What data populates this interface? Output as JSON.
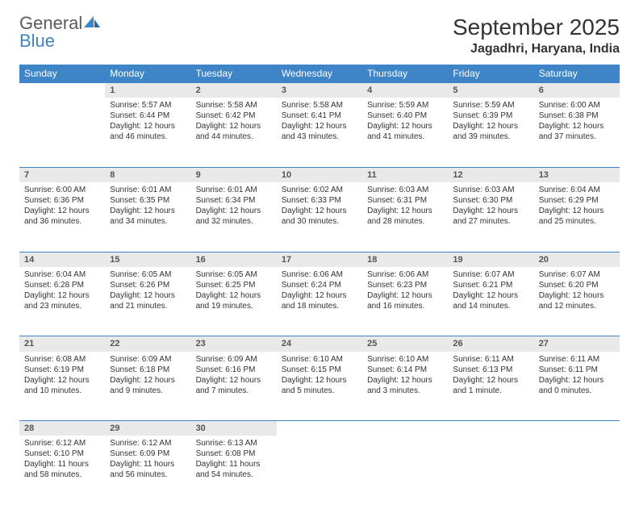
{
  "logo": {
    "word1": "General",
    "word2": "Blue"
  },
  "title": "September 2025",
  "location": "Jagadhri, Haryana, India",
  "colors": {
    "header_bg": "#3d85c6",
    "header_fg": "#ffffff",
    "daynum_bg": "#e9e9e9",
    "row_border": "#3d85c6",
    "text": "#333333",
    "logo_gray": "#5a5a5a",
    "logo_blue": "#3d85c6",
    "background": "#ffffff"
  },
  "typography": {
    "title_pt": 28,
    "location_pt": 16,
    "header_pt": 12,
    "daynum_pt": 11,
    "body_pt": 10
  },
  "day_headers": [
    "Sunday",
    "Monday",
    "Tuesday",
    "Wednesday",
    "Thursday",
    "Friday",
    "Saturday"
  ],
  "weeks": [
    {
      "nums": [
        "",
        "1",
        "2",
        "3",
        "4",
        "5",
        "6"
      ],
      "cells": [
        null,
        {
          "sunrise": "Sunrise: 5:57 AM",
          "sunset": "Sunset: 6:44 PM",
          "daylight": "Daylight: 12 hours and 46 minutes."
        },
        {
          "sunrise": "Sunrise: 5:58 AM",
          "sunset": "Sunset: 6:42 PM",
          "daylight": "Daylight: 12 hours and 44 minutes."
        },
        {
          "sunrise": "Sunrise: 5:58 AM",
          "sunset": "Sunset: 6:41 PM",
          "daylight": "Daylight: 12 hours and 43 minutes."
        },
        {
          "sunrise": "Sunrise: 5:59 AM",
          "sunset": "Sunset: 6:40 PM",
          "daylight": "Daylight: 12 hours and 41 minutes."
        },
        {
          "sunrise": "Sunrise: 5:59 AM",
          "sunset": "Sunset: 6:39 PM",
          "daylight": "Daylight: 12 hours and 39 minutes."
        },
        {
          "sunrise": "Sunrise: 6:00 AM",
          "sunset": "Sunset: 6:38 PM",
          "daylight": "Daylight: 12 hours and 37 minutes."
        }
      ]
    },
    {
      "nums": [
        "7",
        "8",
        "9",
        "10",
        "11",
        "12",
        "13"
      ],
      "cells": [
        {
          "sunrise": "Sunrise: 6:00 AM",
          "sunset": "Sunset: 6:36 PM",
          "daylight": "Daylight: 12 hours and 36 minutes."
        },
        {
          "sunrise": "Sunrise: 6:01 AM",
          "sunset": "Sunset: 6:35 PM",
          "daylight": "Daylight: 12 hours and 34 minutes."
        },
        {
          "sunrise": "Sunrise: 6:01 AM",
          "sunset": "Sunset: 6:34 PM",
          "daylight": "Daylight: 12 hours and 32 minutes."
        },
        {
          "sunrise": "Sunrise: 6:02 AM",
          "sunset": "Sunset: 6:33 PM",
          "daylight": "Daylight: 12 hours and 30 minutes."
        },
        {
          "sunrise": "Sunrise: 6:03 AM",
          "sunset": "Sunset: 6:31 PM",
          "daylight": "Daylight: 12 hours and 28 minutes."
        },
        {
          "sunrise": "Sunrise: 6:03 AM",
          "sunset": "Sunset: 6:30 PM",
          "daylight": "Daylight: 12 hours and 27 minutes."
        },
        {
          "sunrise": "Sunrise: 6:04 AM",
          "sunset": "Sunset: 6:29 PM",
          "daylight": "Daylight: 12 hours and 25 minutes."
        }
      ]
    },
    {
      "nums": [
        "14",
        "15",
        "16",
        "17",
        "18",
        "19",
        "20"
      ],
      "cells": [
        {
          "sunrise": "Sunrise: 6:04 AM",
          "sunset": "Sunset: 6:28 PM",
          "daylight": "Daylight: 12 hours and 23 minutes."
        },
        {
          "sunrise": "Sunrise: 6:05 AM",
          "sunset": "Sunset: 6:26 PM",
          "daylight": "Daylight: 12 hours and 21 minutes."
        },
        {
          "sunrise": "Sunrise: 6:05 AM",
          "sunset": "Sunset: 6:25 PM",
          "daylight": "Daylight: 12 hours and 19 minutes."
        },
        {
          "sunrise": "Sunrise: 6:06 AM",
          "sunset": "Sunset: 6:24 PM",
          "daylight": "Daylight: 12 hours and 18 minutes."
        },
        {
          "sunrise": "Sunrise: 6:06 AM",
          "sunset": "Sunset: 6:23 PM",
          "daylight": "Daylight: 12 hours and 16 minutes."
        },
        {
          "sunrise": "Sunrise: 6:07 AM",
          "sunset": "Sunset: 6:21 PM",
          "daylight": "Daylight: 12 hours and 14 minutes."
        },
        {
          "sunrise": "Sunrise: 6:07 AM",
          "sunset": "Sunset: 6:20 PM",
          "daylight": "Daylight: 12 hours and 12 minutes."
        }
      ]
    },
    {
      "nums": [
        "21",
        "22",
        "23",
        "24",
        "25",
        "26",
        "27"
      ],
      "cells": [
        {
          "sunrise": "Sunrise: 6:08 AM",
          "sunset": "Sunset: 6:19 PM",
          "daylight": "Daylight: 12 hours and 10 minutes."
        },
        {
          "sunrise": "Sunrise: 6:09 AM",
          "sunset": "Sunset: 6:18 PM",
          "daylight": "Daylight: 12 hours and 9 minutes."
        },
        {
          "sunrise": "Sunrise: 6:09 AM",
          "sunset": "Sunset: 6:16 PM",
          "daylight": "Daylight: 12 hours and 7 minutes."
        },
        {
          "sunrise": "Sunrise: 6:10 AM",
          "sunset": "Sunset: 6:15 PM",
          "daylight": "Daylight: 12 hours and 5 minutes."
        },
        {
          "sunrise": "Sunrise: 6:10 AM",
          "sunset": "Sunset: 6:14 PM",
          "daylight": "Daylight: 12 hours and 3 minutes."
        },
        {
          "sunrise": "Sunrise: 6:11 AM",
          "sunset": "Sunset: 6:13 PM",
          "daylight": "Daylight: 12 hours and 1 minute."
        },
        {
          "sunrise": "Sunrise: 6:11 AM",
          "sunset": "Sunset: 6:11 PM",
          "daylight": "Daylight: 12 hours and 0 minutes."
        }
      ]
    },
    {
      "nums": [
        "28",
        "29",
        "30",
        "",
        "",
        "",
        ""
      ],
      "cells": [
        {
          "sunrise": "Sunrise: 6:12 AM",
          "sunset": "Sunset: 6:10 PM",
          "daylight": "Daylight: 11 hours and 58 minutes."
        },
        {
          "sunrise": "Sunrise: 6:12 AM",
          "sunset": "Sunset: 6:09 PM",
          "daylight": "Daylight: 11 hours and 56 minutes."
        },
        {
          "sunrise": "Sunrise: 6:13 AM",
          "sunset": "Sunset: 6:08 PM",
          "daylight": "Daylight: 11 hours and 54 minutes."
        },
        null,
        null,
        null,
        null
      ]
    }
  ]
}
